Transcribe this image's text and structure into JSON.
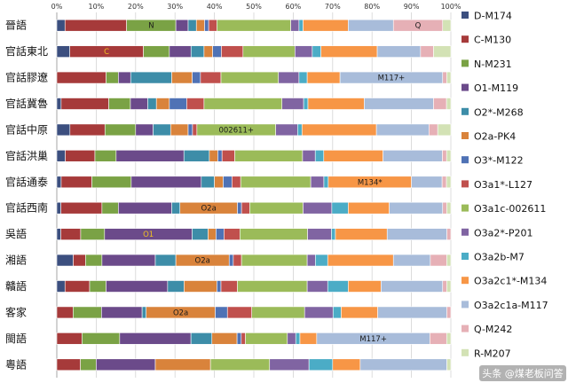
{
  "chart_data": {
    "type": "bar",
    "orientation": "horizontal",
    "stacked": true,
    "xlim": [
      0,
      100
    ],
    "x_tick_labels": [
      "0%",
      "10%",
      "20%",
      "30%",
      "40%",
      "50%",
      "60%",
      "70%",
      "80%",
      "90%",
      "100%"
    ],
    "grid": true,
    "legend_position": "right",
    "categories": [
      "晉語",
      "官話東北",
      "官話膠遼",
      "官話冀魯",
      "官話中原",
      "官話洪巢",
      "官話通泰",
      "官話西南",
      "吳語",
      "湘語",
      "贛語",
      "客家",
      "閩語",
      "粵語"
    ],
    "series": [
      {
        "name": "D-M174",
        "color": "#3C4F7F",
        "values": [
          2,
          3,
          0,
          1,
          3,
          2,
          1,
          1,
          1,
          4,
          2,
          0,
          0,
          0
        ]
      },
      {
        "name": "C-M130",
        "color": "#A63A3A",
        "values": [
          15,
          17,
          12,
          11,
          8,
          7,
          7,
          10,
          5,
          3,
          6,
          4,
          6,
          6
        ]
      },
      {
        "name": "N-M231",
        "color": "#7AA245",
        "values": [
          12,
          6,
          3,
          5,
          7,
          5,
          9,
          4,
          6,
          4,
          4,
          7,
          9,
          4
        ]
      },
      {
        "name": "O1-M119",
        "color": "#6B4A8A",
        "values": [
          3,
          5,
          3,
          4,
          4,
          16,
          16,
          13,
          22,
          13,
          15,
          10,
          17,
          15
        ]
      },
      {
        "name": "O2*-M268",
        "color": "#3D8DA8",
        "values": [
          2,
          3,
          10,
          2,
          4,
          6,
          3,
          2,
          4,
          5,
          4,
          1,
          5,
          0
        ]
      },
      {
        "name": "O2a-PK4",
        "color": "#D9833B",
        "values": [
          2,
          2,
          5,
          3,
          4,
          2,
          2,
          14,
          2,
          13,
          8,
          17,
          6,
          14
        ]
      },
      {
        "name": "O3*-M122",
        "color": "#4F72B5",
        "values": [
          1,
          2,
          2,
          4,
          1,
          1,
          2,
          1,
          2,
          1,
          1,
          3,
          1,
          0
        ]
      },
      {
        "name": "O3a1*-L127",
        "color": "#C0504D",
        "values": [
          2,
          5,
          5,
          4,
          1,
          3,
          2,
          2,
          4,
          2,
          4,
          6,
          1,
          0
        ]
      },
      {
        "name": "O3a1c-002611",
        "color": "#9BBB59",
        "values": [
          18,
          12,
          14,
          18,
          18,
          16,
          16,
          13,
          17,
          16,
          17,
          13,
          10,
          15
        ]
      },
      {
        "name": "O3a2*-P201",
        "color": "#8064A2",
        "values": [
          2,
          4,
          5,
          5,
          5,
          3,
          3,
          7,
          6,
          2,
          5,
          7,
          2,
          10
        ]
      },
      {
        "name": "O3a2b-M7",
        "color": "#4BACC6",
        "values": [
          1,
          2,
          2,
          1,
          1,
          2,
          1,
          4,
          1,
          3,
          5,
          2,
          1,
          6
        ]
      },
      {
        "name": "O3a2c1*-M134",
        "color": "#F79646",
        "values": [
          11,
          13,
          8,
          13,
          17,
          14,
          19,
          10,
          13,
          16,
          8,
          9,
          4,
          7
        ]
      },
      {
        "name": "O3a2c1a-M117",
        "color": "#A8BCDA",
        "values": [
          11,
          10,
          25,
          16,
          12,
          14,
          7,
          13,
          15,
          9,
          15,
          17,
          27,
          22
        ]
      },
      {
        "name": "Q-M242",
        "color": "#E6B0B6",
        "values": [
          12,
          3,
          1,
          3,
          2,
          1,
          1,
          1,
          1,
          4,
          1,
          1,
          4,
          0
        ]
      },
      {
        "name": "R-M207",
        "color": "#D3E2B5",
        "values": [
          2,
          4,
          1,
          1,
          3,
          1,
          1,
          1,
          0,
          1,
          1,
          0,
          1,
          1
        ]
      }
    ],
    "annotations": [
      {
        "category": "晉語",
        "series": "N-M231",
        "text": "N"
      },
      {
        "category": "晉語",
        "series": "Q-M242",
        "text": "Q"
      },
      {
        "category": "官話東北",
        "series": "C-M130",
        "text": "C"
      },
      {
        "category": "官話膠遼",
        "series": "O3a2c1a-M117",
        "text": "M117+"
      },
      {
        "category": "官話中原",
        "series": "O3a1c-002611",
        "text": "002611+"
      },
      {
        "category": "官話通泰",
        "series": "O3a2c1*-M134",
        "text": "M134*"
      },
      {
        "category": "官話西南",
        "series": "O2a-PK4",
        "text": "O2a"
      },
      {
        "category": "吳語",
        "series": "O1-M119",
        "text": "O1"
      },
      {
        "category": "湘語",
        "series": "O2a-PK4",
        "text": "O2a"
      },
      {
        "category": "客家",
        "series": "O2a-PK4",
        "text": "O2a"
      },
      {
        "category": "閩語",
        "series": "O3a2c1a-M117",
        "text": "M117+"
      }
    ]
  },
  "watermark": {
    "text": "头条 @煤老板问答"
  }
}
